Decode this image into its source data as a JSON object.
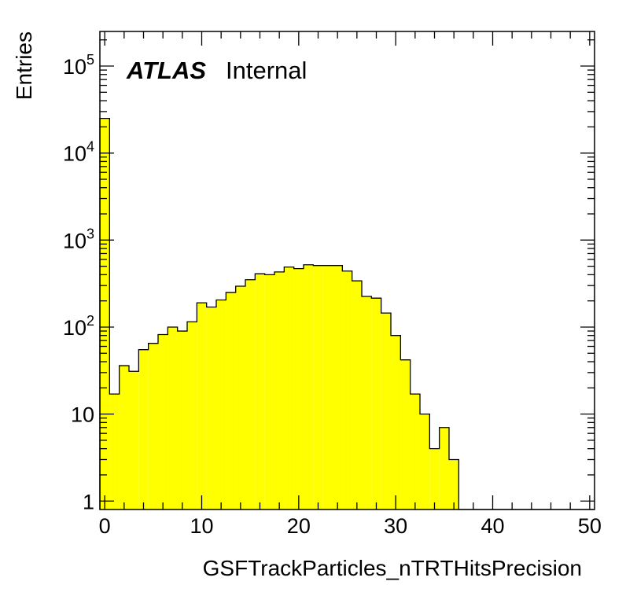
{
  "chart_data": {
    "type": "bar",
    "style": "histogram-log",
    "xlabel": "GSFTrackParticles_nTRTHitsPrecision",
    "ylabel": "Entries",
    "xlim": [
      -0.5,
      50.5
    ],
    "ylim": [
      0.8,
      250000
    ],
    "ylog": true,
    "bin_width": 1,
    "fill_color": "#ffff00",
    "line_color": "#000000",
    "atlas_label": "ATLAS",
    "atlas_status": "Internal",
    "x_ticks": [
      0,
      10,
      20,
      30,
      40,
      50
    ],
    "y_ticks": [
      {
        "value": 1,
        "base": "1",
        "exp": ""
      },
      {
        "value": 10,
        "base": "10",
        "exp": ""
      },
      {
        "value": 100,
        "base": "10",
        "exp": "2"
      },
      {
        "value": 1000,
        "base": "10",
        "exp": "3"
      },
      {
        "value": 10000,
        "base": "10",
        "exp": "4"
      },
      {
        "value": 100000,
        "base": "10",
        "exp": "5"
      }
    ],
    "bins": [
      0,
      1,
      2,
      3,
      4,
      5,
      6,
      7,
      8,
      9,
      10,
      11,
      12,
      13,
      14,
      15,
      16,
      17,
      18,
      19,
      20,
      21,
      22,
      23,
      24,
      25,
      26,
      27,
      28,
      29,
      30,
      31,
      32,
      33,
      34,
      35,
      36,
      37,
      38,
      39,
      40,
      41,
      42,
      43,
      44,
      45,
      46,
      47,
      48,
      49,
      50
    ],
    "values": [
      25000,
      17,
      36,
      31,
      55,
      65,
      82,
      100,
      90,
      115,
      190,
      170,
      205,
      250,
      295,
      350,
      410,
      400,
      430,
      490,
      470,
      520,
      510,
      510,
      510,
      440,
      340,
      225,
      215,
      145,
      80,
      42,
      17,
      10,
      4,
      7,
      3,
      0,
      0,
      0,
      0,
      0,
      0,
      0,
      0,
      0,
      0,
      0,
      0,
      0,
      0
    ]
  }
}
